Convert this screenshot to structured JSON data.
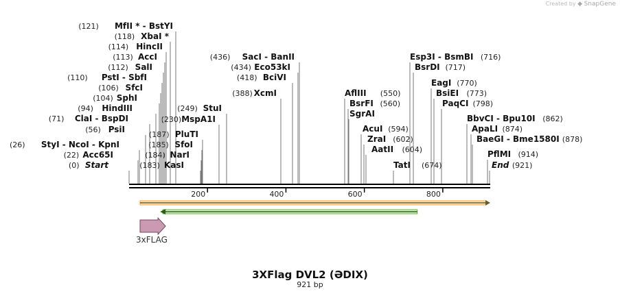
{
  "credit": {
    "prefix": "Created by",
    "brand": "SnapGene"
  },
  "title": "3XFlag DVL2 (ƏDIX)",
  "subtitle": "921 bp",
  "sequence": {
    "length": 921,
    "axis_ticks": [
      "200",
      "400",
      "600",
      "800"
    ],
    "axis_tick_values": [
      200,
      400,
      600,
      800
    ]
  },
  "features": [
    {
      "name": "3xFLAG",
      "start": 28,
      "end": 93,
      "direction": "forward",
      "color": "#cc99b2"
    }
  ],
  "orf_bars": [
    {
      "start": 28,
      "end": 921,
      "direction": "forward",
      "color": "#f2a33a"
    },
    {
      "start": 79,
      "end": 735,
      "direction": "reverse",
      "color": "#5ab82f"
    }
  ],
  "sites": [
    {
      "name": "Start",
      "pos": 0,
      "pos_label": "(0)",
      "italic": true
    },
    {
      "name": "Acc65I",
      "pos": 22,
      "pos_label": "(22)"
    },
    {
      "name": "StyI - NcoI - KpnI",
      "pos": 26,
      "pos_label": "(26)"
    },
    {
      "name": "PsiI",
      "pos": 56,
      "pos_label": "(56)"
    },
    {
      "name": "ClaI - BspDI",
      "pos": 71,
      "pos_label": "(71)"
    },
    {
      "name": "HindIII",
      "pos": 94,
      "pos_label": "(94)"
    },
    {
      "name": "SphI",
      "pos": 104,
      "pos_label": "(104)"
    },
    {
      "name": "SfcI",
      "pos": 106,
      "pos_label": "(106)"
    },
    {
      "name": "PstI - SbfI",
      "pos": 110,
      "pos_label": "(110)"
    },
    {
      "name": "SalI",
      "pos": 112,
      "pos_label": "(112)"
    },
    {
      "name": "AccI",
      "pos": 113,
      "pos_label": "(113)"
    },
    {
      "name": "HincII",
      "pos": 114,
      "pos_label": "(114)"
    },
    {
      "name": "XbaI *",
      "pos": 118,
      "pos_label": "(118)"
    },
    {
      "name": "MfII * - BstYI",
      "pos": 121,
      "pos_label": "(121)"
    },
    {
      "name": "KasI",
      "pos": 183,
      "pos_label": "(183)"
    },
    {
      "name": "NarI",
      "pos": 184,
      "pos_label": "(184)"
    },
    {
      "name": "SfoI",
      "pos": 185,
      "pos_label": "(185)"
    },
    {
      "name": "PluTI",
      "pos": 187,
      "pos_label": "(187)"
    },
    {
      "name": "MspA1I",
      "pos": 230,
      "pos_label": "(230)"
    },
    {
      "name": "StuI",
      "pos": 249,
      "pos_label": "(249)"
    },
    {
      "name": "XcmI",
      "pos": 388,
      "pos_label": "(388)"
    },
    {
      "name": "BciVI",
      "pos": 418,
      "pos_label": "(418)"
    },
    {
      "name": "Eco53kI",
      "pos": 434,
      "pos_label": "(434)"
    },
    {
      "name": "SacI - BanII",
      "pos": 436,
      "pos_label": "(436)"
    },
    {
      "name": "AflIII",
      "pos": 550,
      "pos_label": "(550)"
    },
    {
      "name": "BsrFI",
      "pos": 560,
      "pos_label": "(560)"
    },
    {
      "name": "SgrAI",
      "pos": 560,
      "pos_label": ""
    },
    {
      "name": "AcuI",
      "pos": 594,
      "pos_label": "(594)"
    },
    {
      "name": "ZraI",
      "pos": 602,
      "pos_label": "(602)"
    },
    {
      "name": "AatII",
      "pos": 604,
      "pos_label": "(604)"
    },
    {
      "name": "TatI",
      "pos": 674,
      "pos_label": "(674)"
    },
    {
      "name": "Esp3I - BsmBI",
      "pos": 716,
      "pos_label": "(716)"
    },
    {
      "name": "BsrDI",
      "pos": 717,
      "pos_label": "(717)"
    },
    {
      "name": "EagI",
      "pos": 770,
      "pos_label": "(770)"
    },
    {
      "name": "BsiEI",
      "pos": 773,
      "pos_label": "(773)"
    },
    {
      "name": "PaqCI",
      "pos": 798,
      "pos_label": "(798)"
    },
    {
      "name": "BbvCI - Bpu10I",
      "pos": 862,
      "pos_label": "(862)"
    },
    {
      "name": "ApaLI",
      "pos": 874,
      "pos_label": "(874)"
    },
    {
      "name": "BaeGI - Bme1580I",
      "pos": 878,
      "pos_label": "(878)"
    },
    {
      "name": "PflMI",
      "pos": 914,
      "pos_label": "(914)"
    },
    {
      "name": "End",
      "pos": 921,
      "pos_label": "(921)",
      "italic": true
    }
  ]
}
